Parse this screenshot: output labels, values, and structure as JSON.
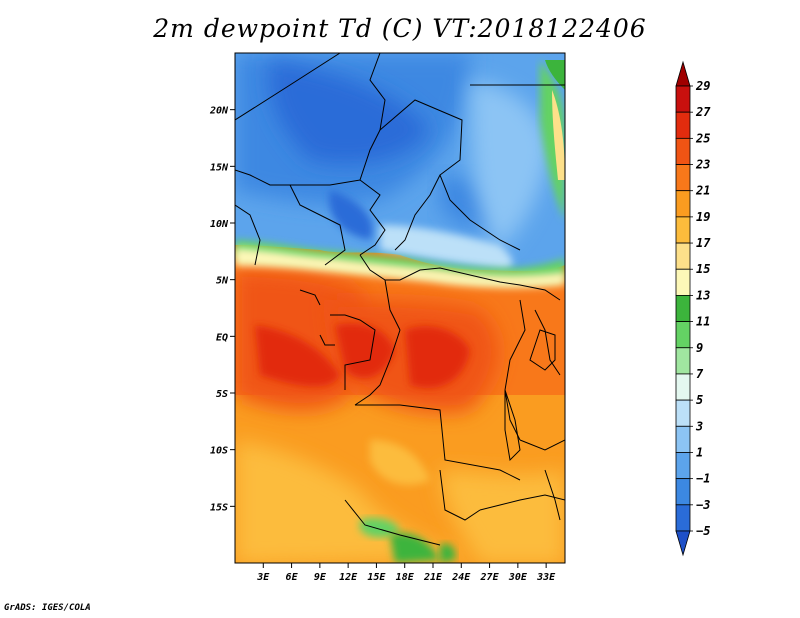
{
  "title": "2m dewpoint Td (C) VT:2018122406",
  "credit": "GrADS: IGES/COLA",
  "map": {
    "lat_range": [
      -20,
      25
    ],
    "lon_range": [
      0,
      35
    ],
    "lat_ticks": [
      {
        "value": 20,
        "label": "20N"
      },
      {
        "value": 15,
        "label": "15N"
      },
      {
        "value": 10,
        "label": "10N"
      },
      {
        "value": 5,
        "label": "5N"
      },
      {
        "value": 0,
        "label": "EQ"
      },
      {
        "value": -5,
        "label": "5S"
      },
      {
        "value": -10,
        "label": "10S"
      },
      {
        "value": -15,
        "label": "15S"
      }
    ],
    "lon_ticks": [
      {
        "value": 3,
        "label": "3E"
      },
      {
        "value": 6,
        "label": "6E"
      },
      {
        "value": 9,
        "label": "9E"
      },
      {
        "value": 12,
        "label": "12E"
      },
      {
        "value": 15,
        "label": "15E"
      },
      {
        "value": 18,
        "label": "18E"
      },
      {
        "value": 21,
        "label": "21E"
      },
      {
        "value": 24,
        "label": "24E"
      },
      {
        "value": 27,
        "label": "27E"
      },
      {
        "value": 30,
        "label": "30E"
      },
      {
        "value": 33,
        "label": "33E"
      }
    ]
  },
  "legend": {
    "labels": [
      "29",
      "27",
      "25",
      "23",
      "21",
      "19",
      "17",
      "15",
      "13",
      "11",
      "9",
      "7",
      "5",
      "3",
      "1",
      "−1",
      "−3",
      "−5"
    ],
    "colors_top_to_bottom": [
      "#a00000",
      "#c8100e",
      "#e22c0e",
      "#f05414",
      "#f8781a",
      "#fa9c20",
      "#fcbc3c",
      "#fde08a",
      "#fdf8b8",
      "#3cb43c",
      "#64d264",
      "#a0e6a0",
      "#e4f8f0",
      "#bce0f8",
      "#8cc4f4",
      "#5ca4ec",
      "#3c88e2",
      "#2a6cd8",
      "#1e50c8"
    ]
  }
}
